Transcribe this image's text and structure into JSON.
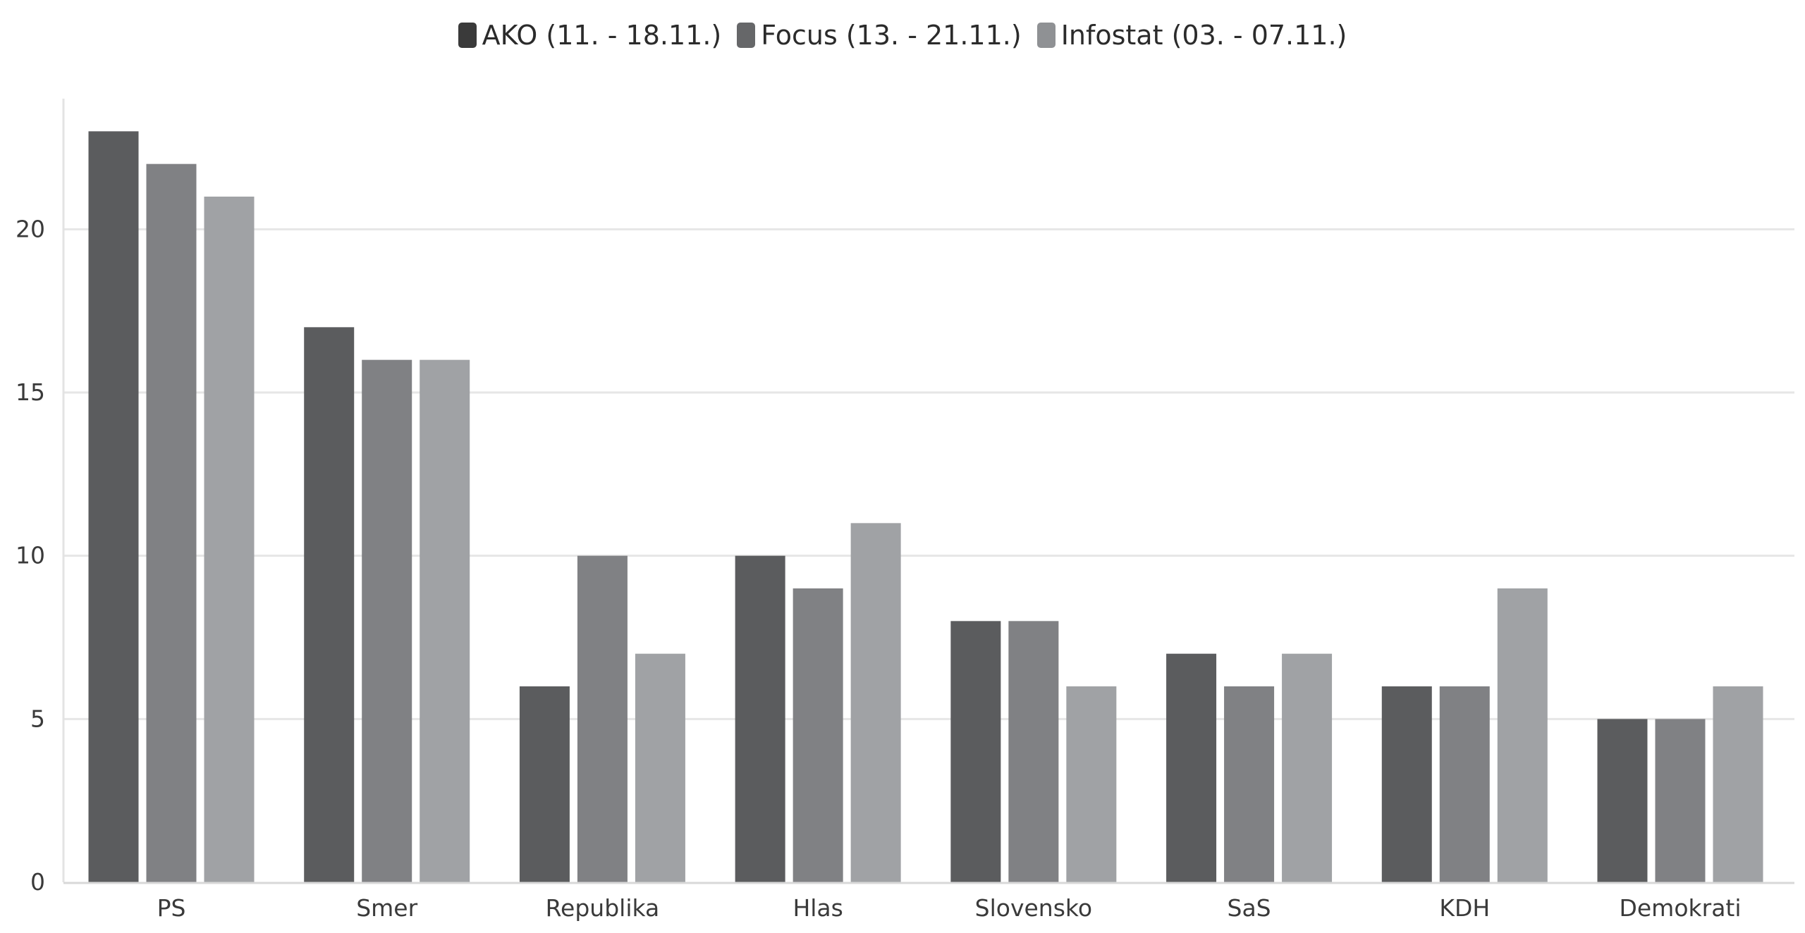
{
  "chart_data": {
    "type": "bar",
    "categories": [
      "PS",
      "Smer",
      "Republika",
      "Hlas",
      "Slovensko",
      "SaS",
      "KDH",
      "Demokrati"
    ],
    "series": [
      {
        "name": "AKO (11. - 18.11.)",
        "values": [
          23,
          17,
          6,
          10,
          8,
          7,
          6,
          5
        ],
        "color": "#5b5c5e"
      },
      {
        "name": "Focus (13. - 21.11.)",
        "values": [
          22,
          16,
          10,
          9,
          8,
          6,
          6,
          5
        ],
        "color": "#808184"
      },
      {
        "name": "Infostat (03. - 07.11.)",
        "values": [
          21,
          16,
          7,
          11,
          6,
          7,
          9,
          6
        ],
        "color": "#a0a2a5"
      }
    ],
    "legend_colors": [
      "#3a3a3a",
      "#666769",
      "#8f9194"
    ],
    "y_ticks": [
      "0",
      "5",
      "10",
      "15",
      "20"
    ],
    "ylim": [
      0,
      24
    ],
    "title": "",
    "xlabel": "",
    "ylabel": "",
    "grid": true,
    "legend_position": "top-center"
  }
}
